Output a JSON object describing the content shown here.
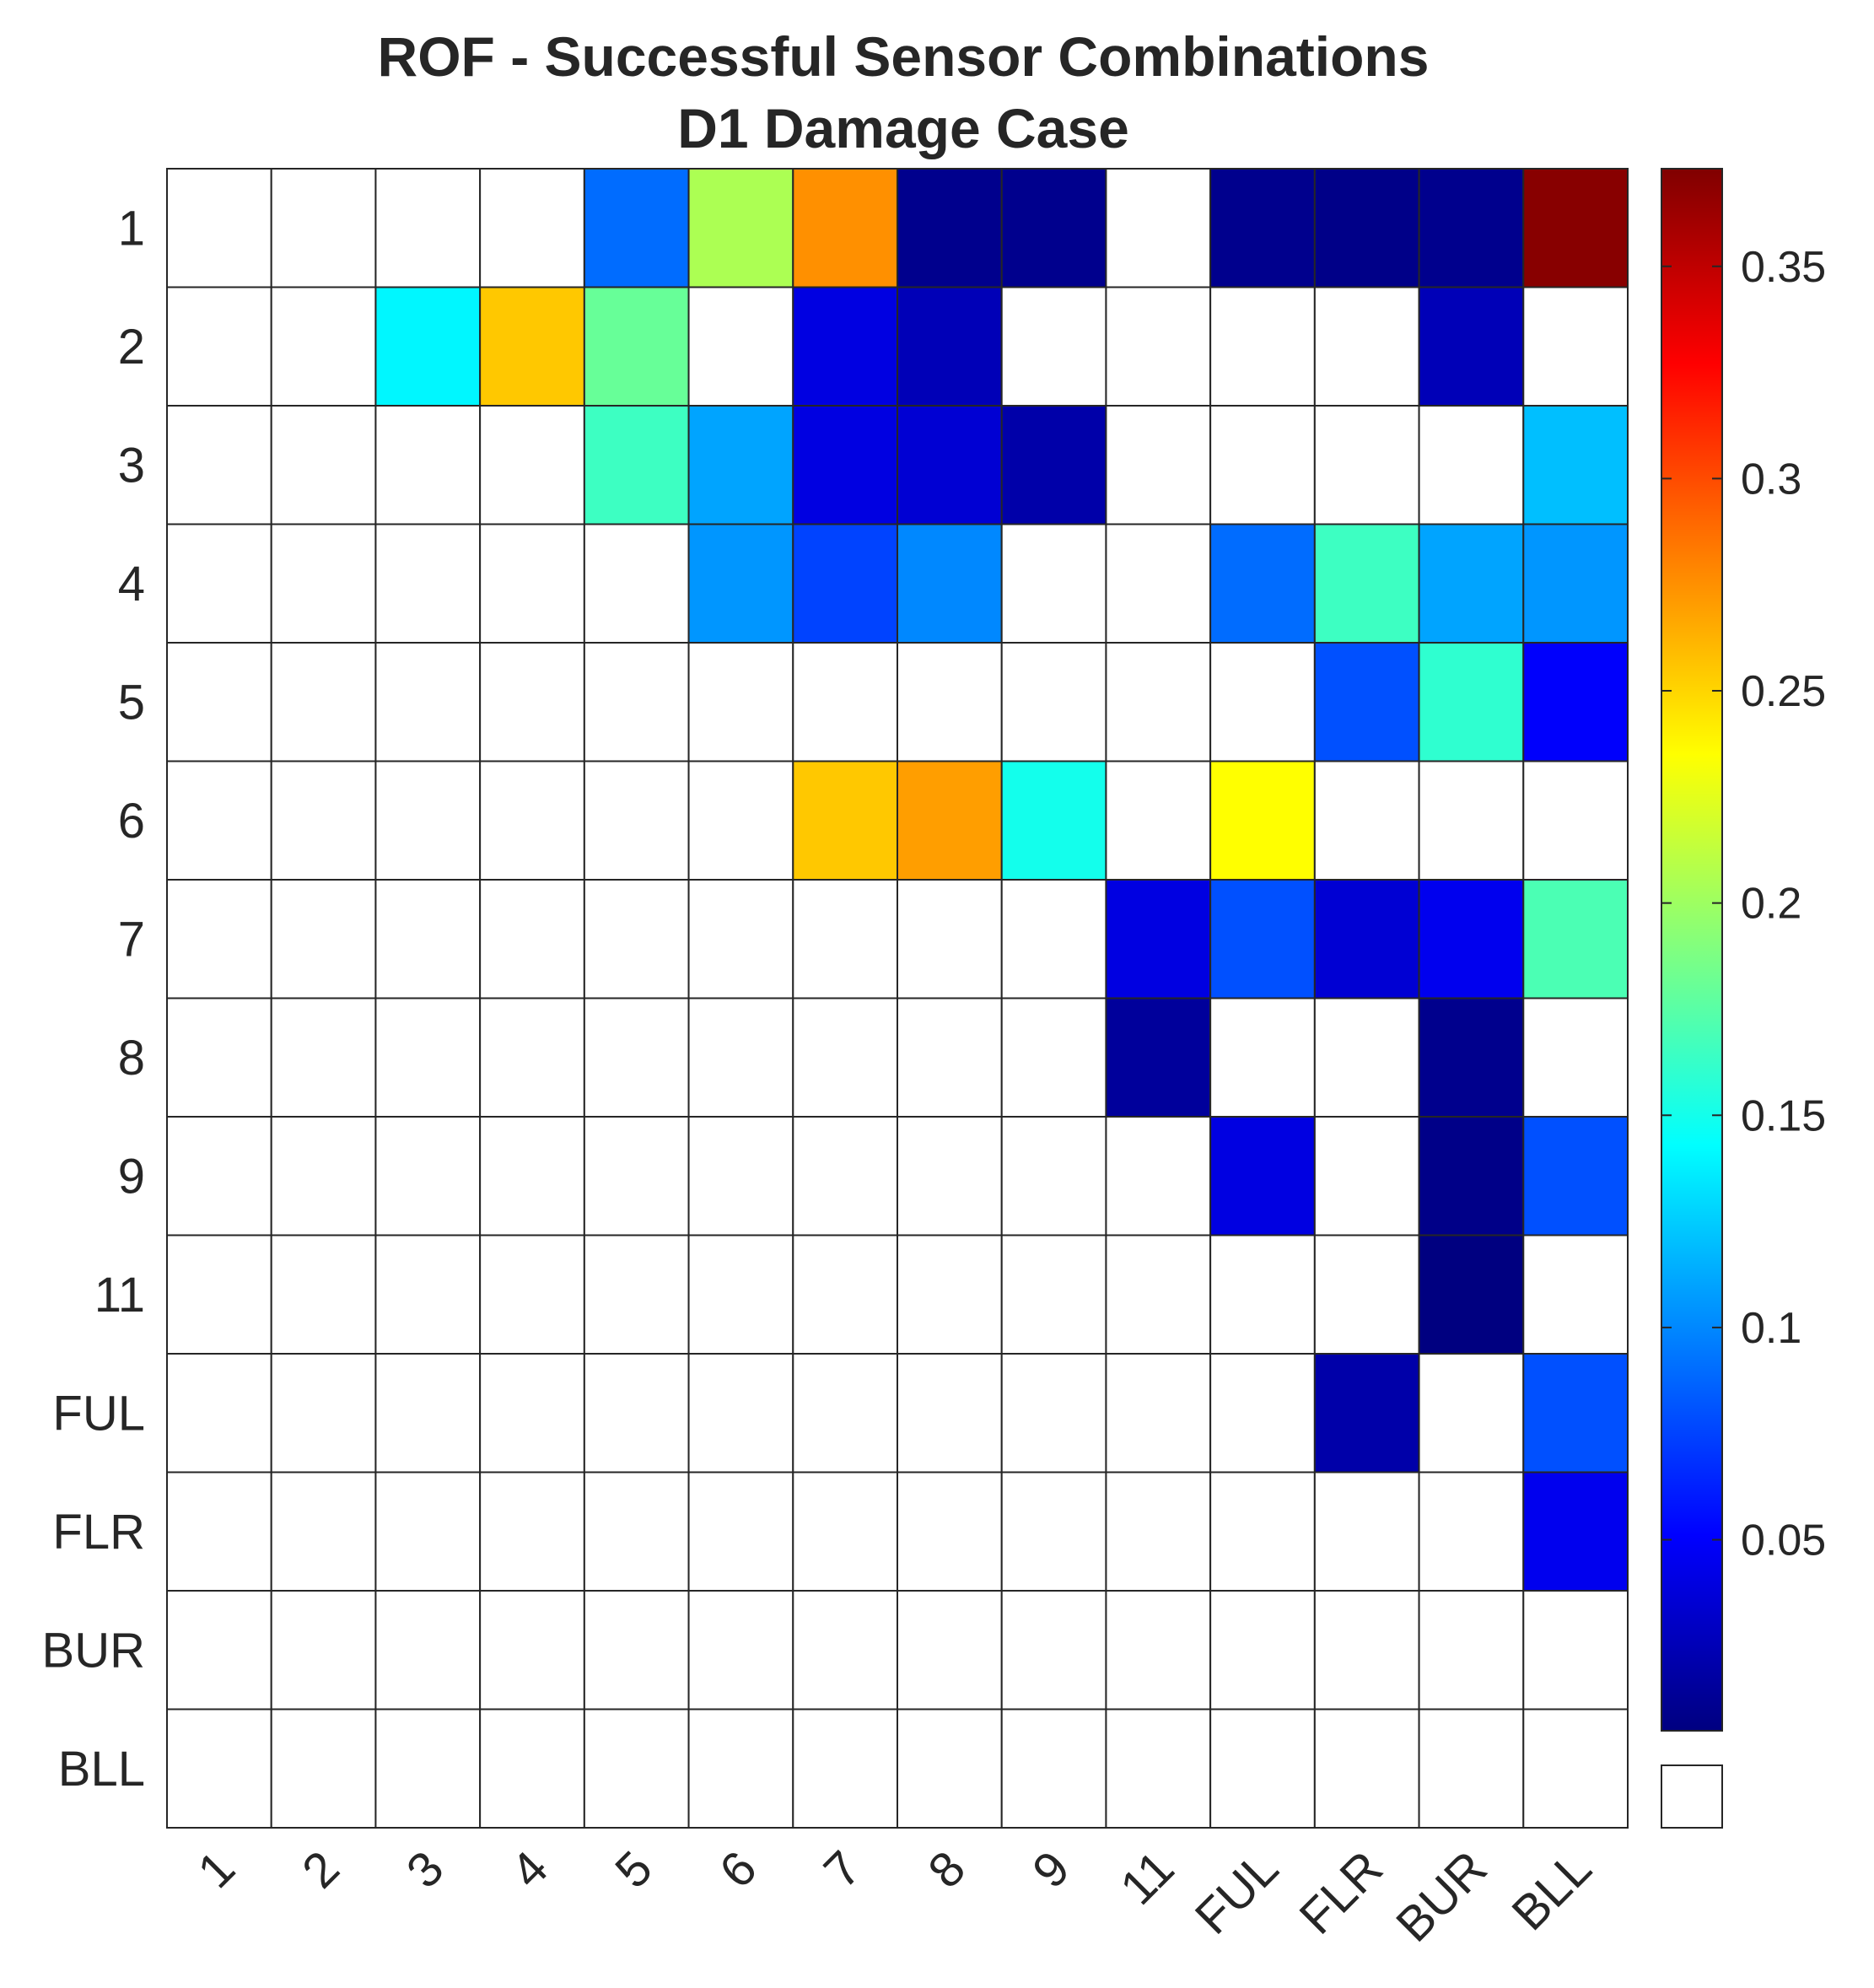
{
  "chart_data": {
    "type": "heatmap",
    "title_lines": [
      "ROF - Successful Sensor Combinations",
      "D1 Damage Case"
    ],
    "row_labels": [
      "1",
      "2",
      "3",
      "4",
      "5",
      "6",
      "7",
      "8",
      "9",
      "11",
      "FUL",
      "FLR",
      "BUR",
      "BLL"
    ],
    "col_labels": [
      "1",
      "2",
      "3",
      "4",
      "5",
      "6",
      "7",
      "8",
      "9",
      "11",
      "FUL",
      "FLR",
      "BUR",
      "BLL"
    ],
    "values": [
      [
        null,
        null,
        null,
        null,
        0.09,
        0.205,
        0.275,
        0.01,
        0.01,
        null,
        0.01,
        0.008,
        0.01,
        0.37
      ],
      [
        null,
        null,
        0.14,
        0.255,
        0.18,
        null,
        0.04,
        0.025,
        null,
        null,
        null,
        null,
        0.025,
        null
      ],
      [
        null,
        null,
        null,
        null,
        0.165,
        0.11,
        0.04,
        0.035,
        0.02,
        null,
        null,
        null,
        null,
        0.12
      ],
      [
        null,
        null,
        null,
        null,
        null,
        0.105,
        0.075,
        0.1,
        null,
        null,
        0.09,
        0.165,
        0.11,
        0.105
      ],
      [
        null,
        null,
        null,
        null,
        null,
        null,
        null,
        null,
        null,
        null,
        null,
        0.08,
        0.16,
        0.05
      ],
      [
        null,
        null,
        null,
        null,
        null,
        null,
        0.255,
        0.27,
        0.15,
        null,
        0.235,
        null,
        null,
        null
      ],
      [
        null,
        null,
        null,
        null,
        null,
        null,
        null,
        null,
        null,
        0.04,
        0.08,
        0.035,
        0.045,
        0.17
      ],
      [
        null,
        null,
        null,
        null,
        null,
        null,
        null,
        null,
        null,
        0.015,
        null,
        null,
        0.01,
        null
      ],
      [
        null,
        null,
        null,
        null,
        null,
        null,
        null,
        null,
        null,
        null,
        0.04,
        null,
        0.008,
        0.08
      ],
      [
        null,
        null,
        null,
        null,
        null,
        null,
        null,
        null,
        null,
        null,
        null,
        null,
        0.005,
        null
      ],
      [
        null,
        null,
        null,
        null,
        null,
        null,
        null,
        null,
        null,
        null,
        null,
        0.02,
        null,
        0.08
      ],
      [
        null,
        null,
        null,
        null,
        null,
        null,
        null,
        null,
        null,
        null,
        null,
        null,
        null,
        0.045
      ],
      [
        null,
        null,
        null,
        null,
        null,
        null,
        null,
        null,
        null,
        null,
        null,
        null,
        null,
        null
      ],
      [
        null,
        null,
        null,
        null,
        null,
        null,
        null,
        null,
        null,
        null,
        null,
        null,
        null,
        null
      ]
    ],
    "colormap": "jet",
    "clim": [
      0.005,
      0.373
    ],
    "colorbar_ticks": [
      0.05,
      0.1,
      0.15,
      0.2,
      0.25,
      0.3,
      0.35
    ],
    "colorbar_tick_labels": [
      "0.05",
      "0.1",
      "0.15",
      "0.2",
      "0.25",
      "0.3",
      "0.35"
    ],
    "missing_color": "#ffffff",
    "grid": true,
    "xlabel": "",
    "ylabel": ""
  }
}
